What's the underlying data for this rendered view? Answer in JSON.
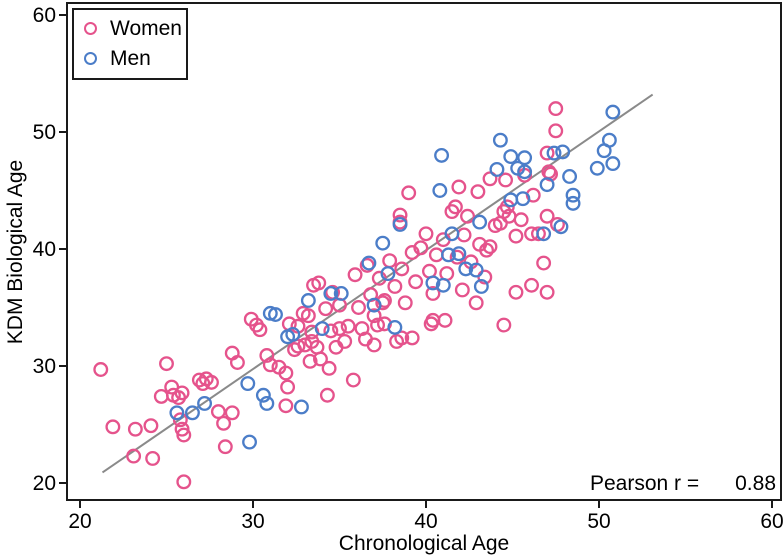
{
  "chart_data": {
    "type": "scatter",
    "title": "",
    "xlabel": "Chronological Age",
    "ylabel": "KDM Biological Age",
    "xlim": [
      19.2,
      60.5
    ],
    "ylim": [
      18.5,
      61.0
    ],
    "x_ticks": [
      20,
      30,
      40,
      50,
      60
    ],
    "y_ticks": [
      20,
      30,
      40,
      50,
      60
    ],
    "grid": false,
    "legend_position": "top-left",
    "frame": true,
    "annotation": {
      "label": "Pearson r =",
      "value": "0.88"
    },
    "fit_line": {
      "x1": 21.3,
      "y1": 20.9,
      "x2": 53.1,
      "y2": 53.2,
      "color": "#8a8a8a"
    },
    "legend": [
      {
        "name": "Women",
        "color": "#e round"
      }
    ],
    "series": [
      {
        "name": "Women",
        "color": "#e5538c",
        "points": [
          [
            21.2,
            29.7
          ],
          [
            21.9,
            24.8
          ],
          [
            23.2,
            24.6
          ],
          [
            24.1,
            24.9
          ],
          [
            23.1,
            22.3
          ],
          [
            24.2,
            22.1
          ],
          [
            24.7,
            27.4
          ],
          [
            25.0,
            30.2
          ],
          [
            25.3,
            28.2
          ],
          [
            25.4,
            27.5
          ],
          [
            25.7,
            27.3
          ],
          [
            25.9,
            27.7
          ],
          [
            25.8,
            25.4
          ],
          [
            25.9,
            24.6
          ],
          [
            26.0,
            24.1
          ],
          [
            26.0,
            20.1
          ],
          [
            26.9,
            28.8
          ],
          [
            27.1,
            28.5
          ],
          [
            27.3,
            28.9
          ],
          [
            27.6,
            28.6
          ],
          [
            28.0,
            26.1
          ],
          [
            28.3,
            25.1
          ],
          [
            28.4,
            23.1
          ],
          [
            28.8,
            26.0
          ],
          [
            28.8,
            31.1
          ],
          [
            29.1,
            30.3
          ],
          [
            29.9,
            34.0
          ],
          [
            30.2,
            33.5
          ],
          [
            30.4,
            33.1
          ],
          [
            30.8,
            30.9
          ],
          [
            31.0,
            30.1
          ],
          [
            31.5,
            29.9
          ],
          [
            31.9,
            29.4
          ],
          [
            32.0,
            28.2
          ],
          [
            31.9,
            26.6
          ],
          [
            32.4,
            31.4
          ],
          [
            32.6,
            31.7
          ],
          [
            33.0,
            31.8
          ],
          [
            33.7,
            31.6
          ],
          [
            34.8,
            31.6
          ],
          [
            32.9,
            34.5
          ],
          [
            33.2,
            34.3
          ],
          [
            32.1,
            33.6
          ],
          [
            32.6,
            33.4
          ],
          [
            33.4,
            32.1
          ],
          [
            33.3,
            30.4
          ],
          [
            33.5,
            36.9
          ],
          [
            33.8,
            37.1
          ],
          [
            33.4,
            32.9
          ],
          [
            33.9,
            30.6
          ],
          [
            34.2,
            34.9
          ],
          [
            34.6,
            36.3
          ],
          [
            34.5,
            33.0
          ],
          [
            34.4,
            29.8
          ],
          [
            35.8,
            28.8
          ],
          [
            34.3,
            27.5
          ],
          [
            35.0,
            35.2
          ],
          [
            35.0,
            33.2
          ],
          [
            35.5,
            33.4
          ],
          [
            35.3,
            32.1
          ],
          [
            35.9,
            37.8
          ],
          [
            36.1,
            35.0
          ],
          [
            36.3,
            33.2
          ],
          [
            36.5,
            32.3
          ],
          [
            36.6,
            38.6
          ],
          [
            36.8,
            36.1
          ],
          [
            37.0,
            34.3
          ],
          [
            37.0,
            31.8
          ],
          [
            37.2,
            33.5
          ],
          [
            37.6,
            33.6
          ],
          [
            37.5,
            35.4
          ],
          [
            38.3,
            32.1
          ],
          [
            38.6,
            32.4
          ],
          [
            39.2,
            32.4
          ],
          [
            37.3,
            37.5
          ],
          [
            37.6,
            35.6
          ],
          [
            37.9,
            39.0
          ],
          [
            38.2,
            36.8
          ],
          [
            38.5,
            42.9
          ],
          [
            38.5,
            42.3
          ],
          [
            38.6,
            38.3
          ],
          [
            38.8,
            35.4
          ],
          [
            39.0,
            44.8
          ],
          [
            39.2,
            39.7
          ],
          [
            39.4,
            37.2
          ],
          [
            39.7,
            40.1
          ],
          [
            40.0,
            41.3
          ],
          [
            40.2,
            38.1
          ],
          [
            40.4,
            36.2
          ],
          [
            40.3,
            33.6
          ],
          [
            40.4,
            33.9
          ],
          [
            41.1,
            33.9
          ],
          [
            40.6,
            39.5
          ],
          [
            41.0,
            40.8
          ],
          [
            41.2,
            37.9
          ],
          [
            41.5,
            43.2
          ],
          [
            41.7,
            43.6
          ],
          [
            41.9,
            45.3
          ],
          [
            41.8,
            39.3
          ],
          [
            42.1,
            36.5
          ],
          [
            42.2,
            41.2
          ],
          [
            42.4,
            42.8
          ],
          [
            42.6,
            38.9
          ],
          [
            42.9,
            35.4
          ],
          [
            43.0,
            44.9
          ],
          [
            43.1,
            40.4
          ],
          [
            43.4,
            37.6
          ],
          [
            43.5,
            39.9
          ],
          [
            43.7,
            46.0
          ],
          [
            43.7,
            40.2
          ],
          [
            44.0,
            42.0
          ],
          [
            44.3,
            42.2
          ],
          [
            44.5,
            43.2
          ],
          [
            44.6,
            45.9
          ],
          [
            44.7,
            43.6
          ],
          [
            44.8,
            42.8
          ],
          [
            44.5,
            33.5
          ],
          [
            45.2,
            41.1
          ],
          [
            45.2,
            36.3
          ],
          [
            45.5,
            42.5
          ],
          [
            45.7,
            46.3
          ],
          [
            46.1,
            41.3
          ],
          [
            46.1,
            36.9
          ],
          [
            46.2,
            44.6
          ],
          [
            46.5,
            41.3
          ],
          [
            46.8,
            38.8
          ],
          [
            47.0,
            36.3
          ],
          [
            47.0,
            42.8
          ],
          [
            47.6,
            42.1
          ],
          [
            47.0,
            48.2
          ],
          [
            47.1,
            46.6
          ],
          [
            47.2,
            46.4
          ],
          [
            47.5,
            50.1
          ],
          [
            47.5,
            52.0
          ]
        ]
      },
      {
        "name": "Men",
        "color": "#4b7dc8",
        "points": [
          [
            25.6,
            26.0
          ],
          [
            26.5,
            26.0
          ],
          [
            27.2,
            26.8
          ],
          [
            29.7,
            28.5
          ],
          [
            29.8,
            23.5
          ],
          [
            30.6,
            27.5
          ],
          [
            30.8,
            26.8
          ],
          [
            31.0,
            34.5
          ],
          [
            31.3,
            34.4
          ],
          [
            32.0,
            32.5
          ],
          [
            32.8,
            26.5
          ],
          [
            32.3,
            32.7
          ],
          [
            33.2,
            35.6
          ],
          [
            34.0,
            33.2
          ],
          [
            34.5,
            36.2
          ],
          [
            35.1,
            36.2
          ],
          [
            36.7,
            38.8
          ],
          [
            37.0,
            35.2
          ],
          [
            37.5,
            40.5
          ],
          [
            37.8,
            37.9
          ],
          [
            38.2,
            33.3
          ],
          [
            38.5,
            42.1
          ],
          [
            40.4,
            37.1
          ],
          [
            41.0,
            36.9
          ],
          [
            40.9,
            48.0
          ],
          [
            40.8,
            45.0
          ],
          [
            41.3,
            39.5
          ],
          [
            41.9,
            39.6
          ],
          [
            41.5,
            41.3
          ],
          [
            42.3,
            38.3
          ],
          [
            42.9,
            38.2
          ],
          [
            43.2,
            36.8
          ],
          [
            43.1,
            42.3
          ],
          [
            44.3,
            49.3
          ],
          [
            44.1,
            46.8
          ],
          [
            44.9,
            47.9
          ],
          [
            45.3,
            46.9
          ],
          [
            45.7,
            47.8
          ],
          [
            45.7,
            46.6
          ],
          [
            44.9,
            44.2
          ],
          [
            45.6,
            44.3
          ],
          [
            46.8,
            41.3
          ],
          [
            47.0,
            45.5
          ],
          [
            47.4,
            48.2
          ],
          [
            47.9,
            48.3
          ],
          [
            48.3,
            46.2
          ],
          [
            48.5,
            44.6
          ],
          [
            48.5,
            43.9
          ],
          [
            47.8,
            41.9
          ],
          [
            49.9,
            46.9
          ],
          [
            50.3,
            48.4
          ],
          [
            50.6,
            49.3
          ],
          [
            50.8,
            51.7
          ],
          [
            50.8,
            47.3
          ]
        ]
      }
    ]
  },
  "legend": {
    "items": [
      {
        "label": "Women",
        "color": "#e5538c"
      },
      {
        "label": "Men",
        "color": "#4b7dc8"
      }
    ]
  },
  "annotation": {
    "label": "Pearson r =",
    "value": "0.88"
  },
  "axes": {
    "x_title": "Chronological Age",
    "y_title": "KDM Biological Age"
  },
  "colors": {
    "women": "#e5538c",
    "men": "#4b7dc8",
    "fit_line": "#8a8a8a",
    "frame": "#1a1a1a",
    "background": "#ffffff"
  }
}
